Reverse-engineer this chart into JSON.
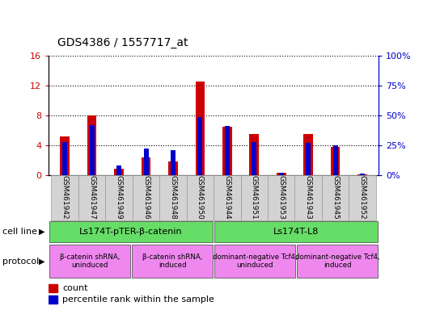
{
  "title": "GDS4386 / 1557717_at",
  "samples": [
    "GSM461942",
    "GSM461947",
    "GSM461949",
    "GSM461946",
    "GSM461948",
    "GSM461950",
    "GSM461944",
    "GSM461951",
    "GSM461953",
    "GSM461943",
    "GSM461945",
    "GSM461952"
  ],
  "counts": [
    5.2,
    8.0,
    0.9,
    2.4,
    1.8,
    12.5,
    6.5,
    5.5,
    0.3,
    5.5,
    3.8,
    0.1
  ],
  "percentiles": [
    28,
    42,
    8,
    22,
    21,
    49,
    41,
    28,
    2,
    27,
    25,
    1
  ],
  "left_ylim": [
    0,
    16
  ],
  "right_ylim": [
    0,
    100
  ],
  "left_yticks": [
    0,
    4,
    8,
    12,
    16
  ],
  "right_yticks": [
    0,
    25,
    50,
    75,
    100
  ],
  "bar_color_red": "#cc0000",
  "bar_color_blue": "#0000cc",
  "cell_line_groups": [
    {
      "label": "Ls174T-pTER-β-catenin",
      "start": 0,
      "end": 6,
      "color": "#66dd66"
    },
    {
      "label": "Ls174T-L8",
      "start": 6,
      "end": 12,
      "color": "#66dd66"
    }
  ],
  "protocol_groups": [
    {
      "label": "β-catenin shRNA,\nuninduced",
      "start": 0,
      "end": 3,
      "color": "#ee88ee"
    },
    {
      "label": "β-catenin shRNA,\ninduced",
      "start": 3,
      "end": 6,
      "color": "#ee88ee"
    },
    {
      "label": "dominant-negative Tcf4,\nuninduced",
      "start": 6,
      "end": 9,
      "color": "#ee88ee"
    },
    {
      "label": "dominant-negative Tcf4,\ninduced",
      "start": 9,
      "end": 12,
      "color": "#ee88ee"
    }
  ],
  "cell_line_label": "cell line",
  "protocol_label": "protocol",
  "legend_count": "count",
  "legend_percentile": "percentile rank within the sample",
  "bg_color": "#ffffff",
  "tick_color_left": "#cc0000",
  "tick_color_right": "#0000cc",
  "red_bar_width": 0.35,
  "blue_bar_width": 0.18
}
